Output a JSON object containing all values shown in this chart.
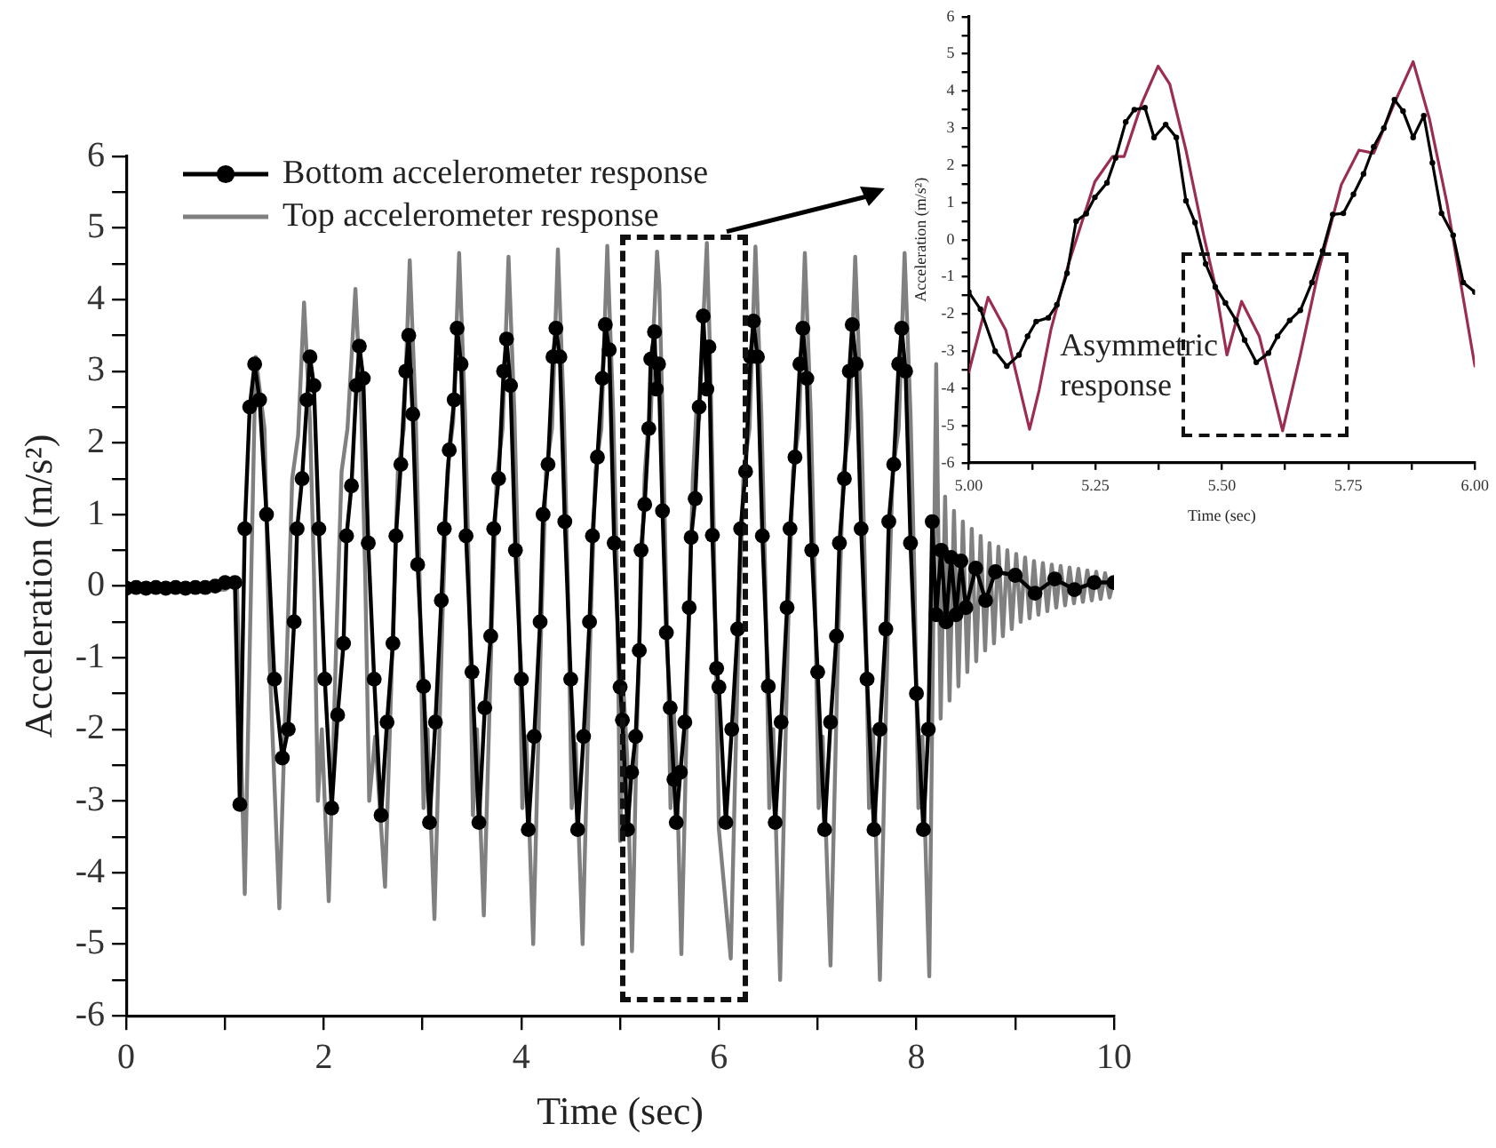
{
  "chart_data": [
    {
      "type": "line",
      "xlabel": "Time (sec)",
      "ylabel": "Acceleration (m/s²)",
      "xlim": [
        0,
        10
      ],
      "ylim": [
        -6,
        6
      ],
      "xticks": [
        0,
        {
          "value": 1,
          "label": null
        },
        2,
        {
          "value": 3,
          "label": null
        },
        4,
        {
          "value": 5,
          "label": null
        },
        6,
        {
          "value": 7,
          "label": null
        },
        8,
        {
          "value": 9,
          "label": null
        },
        10
      ],
      "yticks": [
        -6,
        {
          "value": -5.5,
          "label": null
        },
        -5,
        {
          "value": -4.5,
          "label": null
        },
        -4,
        {
          "value": -3.5,
          "label": null
        },
        -3,
        {
          "value": -2.5,
          "label": null
        },
        -2,
        {
          "value": -1.5,
          "label": null
        },
        -1,
        {
          "value": -0.5,
          "label": null
        },
        0,
        {
          "value": 0.5,
          "label": null
        },
        1,
        {
          "value": 1.5,
          "label": null
        },
        2,
        {
          "value": 2.5,
          "label": null
        },
        3,
        {
          "value": 3.5,
          "label": null
        },
        4,
        {
          "value": 4.5,
          "label": null
        },
        5,
        {
          "value": 5.5,
          "label": null
        },
        6
      ],
      "grid": false,
      "legend": "top left",
      "series": [
        {
          "name": "Bottom accelerometer response",
          "color": "#000000",
          "marker": "circle",
          "x": [
            0,
            0.1,
            0.2,
            0.3,
            0.4,
            0.5,
            0.6,
            0.7,
            0.8,
            0.9,
            1.0,
            1.1,
            1.15,
            1.2,
            1.25,
            1.3,
            1.35,
            1.42,
            1.5,
            1.58,
            1.64,
            1.7,
            1.73,
            1.78,
            1.83,
            1.86,
            1.9,
            1.95,
            2.01,
            2.08,
            2.14,
            2.2,
            2.23,
            2.28,
            2.33,
            2.36,
            2.4,
            2.45,
            2.51,
            2.58,
            2.64,
            2.7,
            2.73,
            2.78,
            2.83,
            2.86,
            2.9,
            2.95,
            3.01,
            3.07,
            3.13,
            3.19,
            3.22,
            3.27,
            3.32,
            3.35,
            3.39,
            3.44,
            3.5,
            3.57,
            3.63,
            3.69,
            3.72,
            3.77,
            3.82,
            3.85,
            3.89,
            3.94,
            4.0,
            4.07,
            4.13,
            4.19,
            4.22,
            4.27,
            4.32,
            4.35,
            4.39,
            4.44,
            4.5,
            4.57,
            4.63,
            4.69,
            4.72,
            4.77,
            4.82,
            4.85,
            4.89,
            4.94,
            5.0,
            5.023,
            5.075,
            5.116,
            5.157,
            5.194,
            5.212,
            5.249,
            5.29,
            5.31,
            5.348,
            5.366,
            5.389,
            5.429,
            5.468,
            5.507,
            5.545,
            5.568,
            5.61,
            5.655,
            5.699,
            5.719,
            5.76,
            5.8,
            5.841,
            5.878,
            5.899,
            5.934,
            5.977,
            6.0,
            6.07,
            6.13,
            6.19,
            6.22,
            6.27,
            6.32,
            6.35,
            6.39,
            6.44,
            6.5,
            6.57,
            6.63,
            6.69,
            6.72,
            6.77,
            6.82,
            6.85,
            6.89,
            6.94,
            7.0,
            7.07,
            7.13,
            7.19,
            7.22,
            7.27,
            7.32,
            7.35,
            7.39,
            7.44,
            7.5,
            7.57,
            7.63,
            7.69,
            7.72,
            7.77,
            7.82,
            7.85,
            7.89,
            7.94,
            8.0,
            8.07,
            8.12,
            8.16,
            8.2,
            8.25,
            8.3,
            8.35,
            8.4,
            8.45,
            8.5,
            8.6,
            8.7,
            8.8,
            9.0,
            9.2,
            9.4,
            9.6,
            9.8,
            10.0
          ],
          "values": [
            -0.03,
            -0.02,
            -0.03,
            -0.02,
            -0.03,
            -0.02,
            -0.03,
            -0.02,
            -0.02,
            0,
            0.05,
            0.05,
            -3.05,
            0.8,
            2.5,
            3.1,
            2.6,
            1.0,
            -1.3,
            -2.4,
            -2.0,
            -0.5,
            0.8,
            1.5,
            2.6,
            3.2,
            2.8,
            0.8,
            -1.3,
            -3.1,
            -1.8,
            -0.8,
            0.7,
            1.4,
            2.8,
            3.35,
            2.9,
            0.6,
            -1.3,
            -3.2,
            -1.9,
            -0.8,
            0.7,
            1.7,
            3.0,
            3.5,
            2.4,
            0.3,
            -1.4,
            -3.3,
            -1.9,
            -0.2,
            0.8,
            1.9,
            2.6,
            3.6,
            3.1,
            0.7,
            -1.2,
            -3.3,
            -1.7,
            -0.7,
            0.8,
            1.5,
            3.0,
            3.45,
            2.8,
            0.5,
            -1.3,
            -3.4,
            -2.1,
            -0.5,
            1.0,
            1.7,
            3.2,
            3.6,
            3.2,
            0.9,
            -1.3,
            -3.4,
            -2.1,
            -0.5,
            0.7,
            1.8,
            2.9,
            3.65,
            3.3,
            0.6,
            -1.41,
            -1.87,
            -3.4,
            -2.6,
            -2.1,
            -0.9,
            0.5,
            1.14,
            2.2,
            3.17,
            3.55,
            2.75,
            3.1,
            1.05,
            -0.65,
            -1.7,
            -2.7,
            -3.3,
            -2.6,
            -1.9,
            -0.3,
            0.68,
            1.22,
            2.5,
            3.77,
            2.75,
            3.34,
            0.71,
            -1.15,
            -1.41,
            -3.3,
            -2.0,
            -0.6,
            0.8,
            1.6,
            3.2,
            3.7,
            3.2,
            0.7,
            -1.4,
            -3.3,
            -1.9,
            -0.3,
            0.8,
            1.8,
            3.1,
            3.6,
            2.9,
            0.5,
            -1.2,
            -3.4,
            -1.9,
            -0.7,
            0.6,
            1.5,
            3.0,
            3.65,
            3.1,
            0.8,
            -1.3,
            -3.4,
            -2.0,
            -0.6,
            0.9,
            1.7,
            3.1,
            3.6,
            3.0,
            0.6,
            -1.5,
            -3.4,
            -2.0,
            0.9,
            -0.4,
            0.5,
            -0.5,
            0.4,
            -0.4,
            0.35,
            -0.3,
            0.25,
            -0.2,
            0.2,
            0.15,
            -0.1,
            0.1,
            -0.05,
            0.05,
            0.05
          ]
        },
        {
          "name": "Top accelerometer response",
          "color": "#808080",
          "marker": "none",
          "x": [
            0,
            1.0,
            1.12,
            1.2,
            1.31,
            1.4,
            1.45,
            1.55,
            1.63,
            1.68,
            1.74,
            1.8,
            1.86,
            1.9,
            1.94,
            1.98,
            2.05,
            2.13,
            2.18,
            2.24,
            2.32,
            2.38,
            2.42,
            2.46,
            2.52,
            2.62,
            2.7,
            2.75,
            2.81,
            2.87,
            2.93,
            2.97,
            3.01,
            3.05,
            3.12,
            3.2,
            3.25,
            3.31,
            3.37,
            3.43,
            3.47,
            3.51,
            3.55,
            3.62,
            3.7,
            3.75,
            3.81,
            3.87,
            3.93,
            3.97,
            4.01,
            4.05,
            4.12,
            4.2,
            4.25,
            4.31,
            4.37,
            4.43,
            4.47,
            4.51,
            4.55,
            4.62,
            4.7,
            4.75,
            4.81,
            4.87,
            4.93,
            4.97,
            5.0,
            5.038,
            5.073,
            5.12,
            5.139,
            5.162,
            5.197,
            5.249,
            5.284,
            5.307,
            5.342,
            5.374,
            5.397,
            5.429,
            5.464,
            5.487,
            5.51,
            5.539,
            5.574,
            5.62,
            5.655,
            5.69,
            5.736,
            5.771,
            5.8,
            5.841,
            5.878,
            5.91,
            5.945,
            6.0,
            6.12,
            6.2,
            6.25,
            6.31,
            6.37,
            6.43,
            6.47,
            6.51,
            6.55,
            6.62,
            6.7,
            6.75,
            6.81,
            6.87,
            6.93,
            6.97,
            7.01,
            7.05,
            7.13,
            7.21,
            7.26,
            7.32,
            7.38,
            7.44,
            7.48,
            7.52,
            7.56,
            7.63,
            7.71,
            7.76,
            7.82,
            7.88,
            7.94,
            7.98,
            8.02,
            8.06,
            8.13,
            8.2,
            8.245,
            8.29,
            8.335,
            8.38,
            8.425,
            8.47,
            8.515,
            8.56,
            8.605,
            8.65,
            8.695,
            8.74,
            8.785,
            8.83,
            8.875,
            8.92,
            8.965,
            9.01,
            9.055,
            9.1,
            9.145,
            9.19,
            9.235,
            9.28,
            9.325,
            9.37,
            9.415,
            9.46,
            9.505,
            9.55,
            9.595,
            9.64,
            9.685,
            9.73,
            9.775,
            9.82,
            9.865,
            9.91,
            9.955,
            10.0
          ],
          "values": [
            -0.05,
            -0.05,
            0.05,
            -4.3,
            3.2,
            2.2,
            -1.0,
            -4.5,
            -0.8,
            1.5,
            2.1,
            3.96,
            2.3,
            0.2,
            -3.0,
            -2.0,
            -4.4,
            -0.6,
            1.6,
            2.2,
            4.15,
            2.4,
            0.1,
            -3.0,
            -2.1,
            -4.2,
            -0.6,
            1.6,
            2.2,
            4.55,
            2.4,
            0.1,
            -3.1,
            -2.0,
            -4.65,
            -0.5,
            1.6,
            2.3,
            4.65,
            2.4,
            0.1,
            -3.2,
            -2.0,
            -4.6,
            -0.6,
            1.5,
            2.2,
            4.6,
            2.4,
            0.2,
            -3.1,
            -2.1,
            -5.0,
            -0.6,
            1.6,
            2.2,
            4.7,
            2.4,
            0.1,
            -3.1,
            -2.2,
            -5.0,
            -0.6,
            1.6,
            2.2,
            4.75,
            2.4,
            0.1,
            -3.56,
            -1.55,
            -2.43,
            -5.1,
            -4.04,
            -2.43,
            -0.65,
            1.56,
            2.24,
            2.24,
            3.68,
            4.67,
            4.19,
            2.41,
            0.12,
            -1.24,
            -3.1,
            -1.66,
            -2.6,
            -5.14,
            -3.1,
            -0.9,
            1.48,
            2.41,
            2.33,
            3.68,
            4.79,
            3.26,
            0.97,
            -3.4,
            -5.2,
            -0.6,
            1.6,
            2.2,
            4.74,
            2.4,
            0.1,
            -3.1,
            -2.0,
            -5.5,
            -0.6,
            1.6,
            2.2,
            4.65,
            2.4,
            0.1,
            -3.1,
            -2.1,
            -5.3,
            -0.6,
            1.6,
            2.2,
            4.6,
            2.4,
            0.1,
            -3.1,
            -2.0,
            -5.5,
            -0.6,
            1.6,
            2.2,
            4.65,
            2.4,
            0.1,
            -3.1,
            -2.1,
            -5.45,
            3.1,
            -1.85,
            1.25,
            -1.6,
            1.05,
            -1.4,
            0.9,
            -1.2,
            0.8,
            -1.05,
            0.7,
            -0.9,
            0.6,
            -0.8,
            0.55,
            -0.7,
            0.5,
            -0.6,
            0.45,
            -0.5,
            0.4,
            -0.45,
            0.35,
            -0.4,
            0.32,
            -0.35,
            0.3,
            -0.3,
            0.28,
            -0.27,
            0.26,
            -0.24,
            0.24,
            -0.22,
            0.22,
            -0.2,
            0.2,
            -0.18,
            0.18,
            -0.16,
            0.1
          ]
        }
      ]
    },
    {
      "type": "line",
      "xlabel": "Time (sec)",
      "ylabel": "Acceleration (m/s²)",
      "xlim": [
        5,
        6
      ],
      "ylim": [
        -6,
        6
      ],
      "xticks": [
        {
          "value": 5,
          "label": "5.00"
        },
        {
          "value": 5.125,
          "label": null
        },
        {
          "value": 5.25,
          "label": "5.25"
        },
        {
          "value": 5.375,
          "label": null
        },
        {
          "value": 5.5,
          "label": "5.50"
        },
        {
          "value": 5.625,
          "label": null
        },
        {
          "value": 5.75,
          "label": "5.75"
        },
        {
          "value": 5.875,
          "label": null
        },
        {
          "value": 6,
          "label": "6.00"
        }
      ],
      "yticks": [
        -6,
        {
          "value": -5.5,
          "label": null
        },
        -5,
        {
          "value": -4.5,
          "label": null
        },
        -4,
        {
          "value": -3.5,
          "label": null
        },
        -3,
        {
          "value": -2.5,
          "label": null
        },
        -2,
        {
          "value": -1.5,
          "label": null
        },
        -1,
        {
          "value": -0.5,
          "label": null
        },
        0,
        {
          "value": 0.5,
          "label": null
        },
        1,
        {
          "value": 1.5,
          "label": null
        },
        2,
        {
          "value": 2.5,
          "label": null
        },
        3,
        {
          "value": 3.5,
          "label": null
        },
        4,
        {
          "value": 4.5,
          "label": null
        },
        5,
        {
          "value": 5.5,
          "label": null
        },
        6
      ],
      "grid": false,
      "annotations": [
        "Asymmetric response"
      ],
      "series": [
        {
          "color": "#000000",
          "marker": "circle",
          "x": [
            5.0,
            5.023,
            5.052,
            5.075,
            5.099,
            5.116,
            5.133,
            5.157,
            5.174,
            5.194,
            5.212,
            5.232,
            5.249,
            5.273,
            5.29,
            5.31,
            5.327,
            5.348,
            5.366,
            5.389,
            5.41,
            5.429,
            5.447,
            5.468,
            5.487,
            5.507,
            5.528,
            5.545,
            5.568,
            5.592,
            5.61,
            5.634,
            5.655,
            5.678,
            5.699,
            5.719,
            5.74,
            5.76,
            5.78,
            5.8,
            5.82,
            5.841,
            5.858,
            5.878,
            5.899,
            5.916,
            5.934,
            5.957,
            5.977,
            6.0
          ],
          "values": [
            -1.41,
            -1.87,
            -3.0,
            -3.4,
            -3.1,
            -2.6,
            -2.2,
            -2.1,
            -1.75,
            -0.9,
            0.5,
            0.7,
            1.14,
            1.53,
            2.2,
            3.17,
            3.5,
            3.55,
            2.75,
            3.1,
            2.75,
            1.05,
            0.46,
            -0.65,
            -1.27,
            -1.7,
            -2.17,
            -2.7,
            -3.3,
            -3.05,
            -2.6,
            -2.17,
            -1.9,
            -1.15,
            -0.3,
            0.68,
            0.71,
            1.22,
            1.77,
            2.5,
            3.0,
            3.77,
            3.46,
            2.75,
            3.34,
            2.07,
            0.71,
            0.12,
            -1.15,
            -1.41
          ]
        },
        {
          "color": "#9b2d50",
          "marker": "none",
          "x": [
            5.0,
            5.038,
            5.073,
            5.12,
            5.139,
            5.162,
            5.197,
            5.249,
            5.284,
            5.307,
            5.342,
            5.374,
            5.397,
            5.429,
            5.464,
            5.487,
            5.51,
            5.539,
            5.574,
            5.62,
            5.655,
            5.69,
            5.736,
            5.771,
            5.8,
            5.841,
            5.878,
            5.91,
            5.945,
            6.0
          ],
          "values": [
            -3.56,
            -1.55,
            -2.43,
            -5.1,
            -4.04,
            -2.43,
            -0.65,
            1.56,
            2.24,
            2.24,
            3.68,
            4.67,
            4.19,
            2.41,
            0.12,
            -1.24,
            -3.1,
            -1.66,
            -2.6,
            -5.14,
            -3.1,
            -0.9,
            1.48,
            2.41,
            2.33,
            3.68,
            4.79,
            3.26,
            0.97,
            -3.4
          ]
        }
      ]
    }
  ]
}
